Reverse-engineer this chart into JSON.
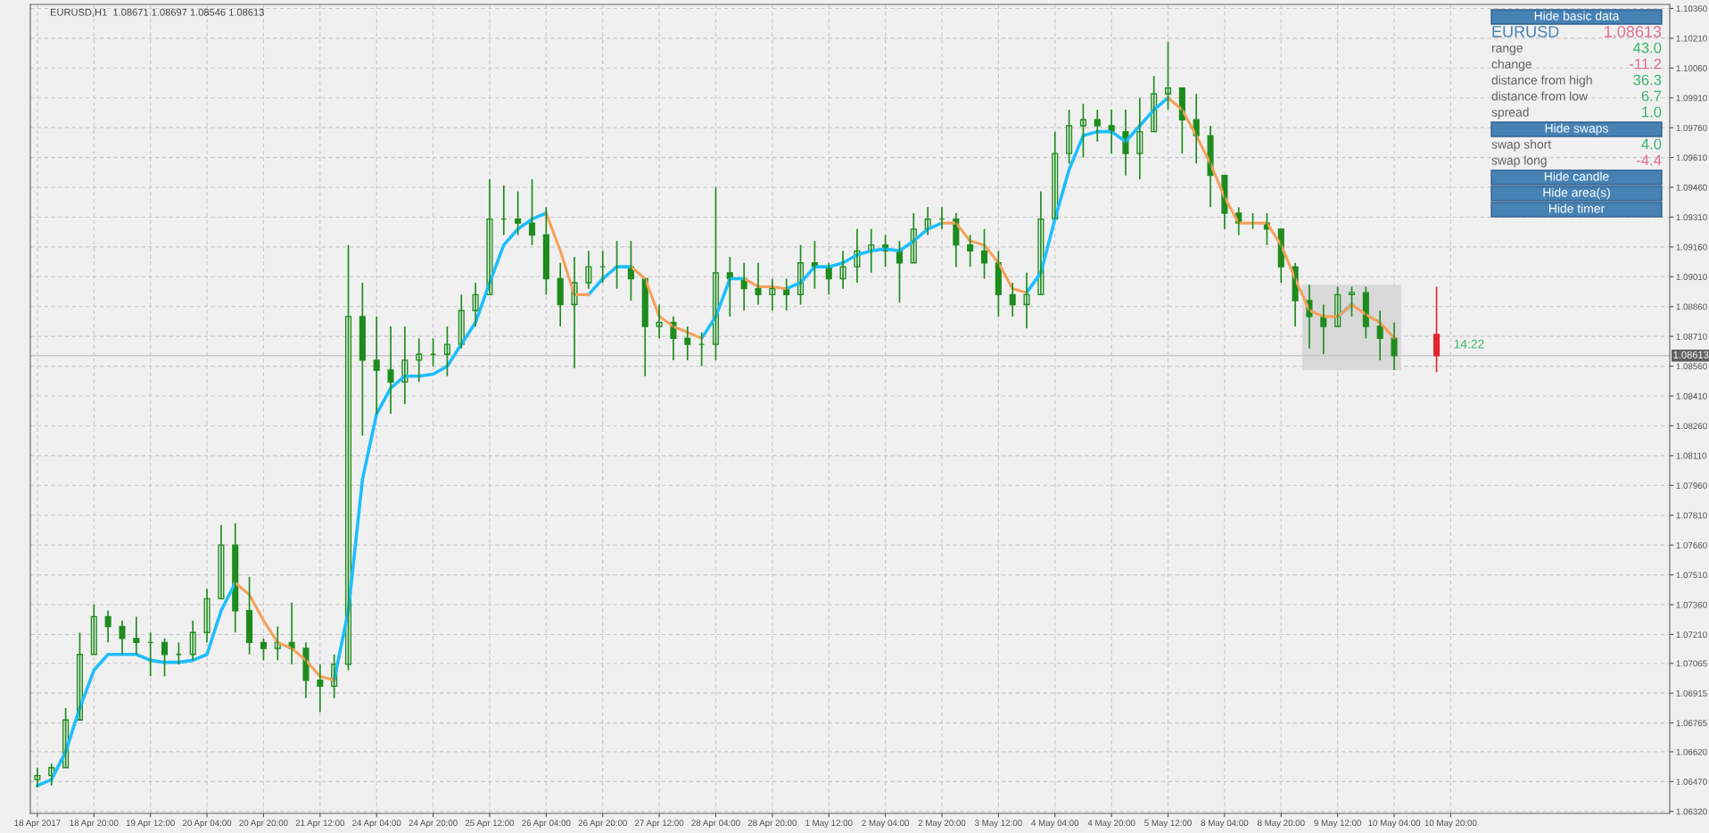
{
  "chart_data": {
    "type": "candlestick",
    "title": "EURUSD,H1  1.08671 1.08697 1.08546 1.08613",
    "categories": [
      "18 Apr 2017",
      null,
      null,
      null,
      "18 Apr 20:00",
      null,
      null,
      null,
      "19 Apr 12:00",
      null,
      null,
      null,
      "20 Apr 04:00",
      null,
      null,
      null,
      "20 Apr 20:00",
      null,
      null,
      null,
      "21 Apr 12:00",
      null,
      null,
      null,
      "24 Apr 04:00",
      null,
      null,
      null,
      "24 Apr 20:00",
      null,
      null,
      null,
      "25 Apr 12:00",
      null,
      null,
      null,
      "26 Apr 04:00",
      null,
      null,
      null,
      "26 Apr 20:00",
      null,
      null,
      null,
      "27 Apr 12:00",
      null,
      null,
      null,
      "28 Apr 04:00",
      null,
      null,
      null,
      "28 Apr 20:00",
      null,
      null,
      null,
      "1 May 12:00",
      null,
      null,
      null,
      "2 May 04:00",
      null,
      null,
      null,
      "2 May 20:00",
      null,
      null,
      null,
      "3 May 12:00",
      null,
      null,
      null,
      "4 May 04:00",
      null,
      null,
      null,
      "4 May 20:00",
      null,
      null,
      null,
      "5 May 12:00",
      null,
      null,
      null,
      "8 May 04:00",
      null,
      null,
      null,
      "8 May 20:00",
      null,
      null,
      null,
      "9 May 12:00",
      null,
      null,
      null,
      "10 May 04:00",
      null,
      null,
      null,
      "10 May 20:00",
      null,
      null,
      null,
      null,
      null,
      null,
      null,
      null,
      null,
      null,
      null,
      null,
      null,
      null,
      null
    ],
    "ylim": [
      1.0631,
      1.1038
    ],
    "yticks": [
      {
        "value": 1.0632,
        "label": "1.06320"
      },
      {
        "value": 1.0647,
        "label": "1.06470"
      },
      {
        "value": 1.0662,
        "label": "1.06620"
      },
      {
        "value": 1.06765,
        "label": "1.06765"
      },
      {
        "value": 1.06915,
        "label": "1.06915"
      },
      {
        "value": 1.07065,
        "label": "1.07065"
      },
      {
        "value": 1.0721,
        "label": "1.07210"
      },
      {
        "value": 1.0736,
        "label": "1.07360"
      },
      {
        "value": 1.0751,
        "label": "1.07510"
      },
      {
        "value": 1.0766,
        "label": "1.07660"
      },
      {
        "value": 1.0781,
        "label": "1.07810"
      },
      {
        "value": 1.0796,
        "label": "1.07960"
      },
      {
        "value": 1.0811,
        "label": "1.08110"
      },
      {
        "value": 1.0826,
        "label": "1.08260"
      },
      {
        "value": 1.0841,
        "label": "1.08410"
      },
      {
        "value": 1.0856,
        "label": "1.08560"
      },
      {
        "value": 1.0871,
        "label": "1.08710"
      },
      {
        "value": 1.0886,
        "label": "1.08860"
      },
      {
        "value": 1.0901,
        "label": "1.09010"
      },
      {
        "value": 1.0916,
        "label": "1.09160"
      },
      {
        "value": 1.0931,
        "label": "1.09310"
      },
      {
        "value": 1.0946,
        "label": "1.09460"
      },
      {
        "value": 1.0961,
        "label": "1.09610"
      },
      {
        "value": 1.0976,
        "label": "1.09760"
      },
      {
        "value": 1.0991,
        "label": "1.09910"
      },
      {
        "value": 1.1006,
        "label": "1.10060"
      },
      {
        "value": 1.1021,
        "label": "1.10210"
      },
      {
        "value": 1.1036,
        "label": "1.10360"
      }
    ],
    "grid": true,
    "series": [
      {
        "type": "candlestick",
        "color": "#1e8c1e",
        "ohlc": [
          [
            1.0648,
            1.0654,
            1.0644,
            1.065
          ],
          [
            1.065,
            1.0656,
            1.0645,
            1.0654
          ],
          [
            1.0654,
            1.0684,
            1.0654,
            1.0678
          ],
          [
            1.0678,
            1.0722,
            1.0678,
            1.0711
          ],
          [
            1.0711,
            1.0736,
            1.0711,
            1.073
          ],
          [
            1.073,
            1.0733,
            1.0717,
            1.0725
          ],
          [
            1.0725,
            1.0728,
            1.0711,
            1.0719
          ],
          [
            1.0719,
            1.073,
            1.0711,
            1.0717
          ],
          [
            1.0717,
            1.0722,
            1.07,
            1.0717
          ],
          [
            1.0717,
            1.0719,
            1.07,
            1.0711
          ],
          [
            1.0711,
            1.0717,
            1.0706,
            1.0711
          ],
          [
            1.0711,
            1.0728,
            1.0708,
            1.0722
          ],
          [
            1.0722,
            1.0744,
            1.0717,
            1.0739
          ],
          [
            1.0739,
            1.0776,
            1.0739,
            1.0766
          ],
          [
            1.0766,
            1.0777,
            1.0722,
            1.0733
          ],
          [
            1.0733,
            1.075,
            1.0711,
            1.0717
          ],
          [
            1.0717,
            1.0719,
            1.0708,
            1.0714
          ],
          [
            1.0714,
            1.0725,
            1.0708,
            1.0717
          ],
          [
            1.0717,
            1.0737,
            1.0706,
            1.0714
          ],
          [
            1.0714,
            1.0717,
            1.0689,
            1.0698
          ],
          [
            1.0698,
            1.0706,
            1.0682,
            1.0695
          ],
          [
            1.0695,
            1.0711,
            1.0689,
            1.0706
          ],
          [
            1.0706,
            1.0917,
            1.0703,
            1.0881
          ],
          [
            1.0881,
            1.0898,
            1.0821,
            1.0859
          ],
          [
            1.0859,
            1.0881,
            1.0832,
            1.0854
          ],
          [
            1.0854,
            1.0876,
            1.0832,
            1.0848
          ],
          [
            1.0848,
            1.0876,
            1.0837,
            1.0859
          ],
          [
            1.0859,
            1.087,
            1.0848,
            1.0862
          ],
          [
            1.0862,
            1.087,
            1.0856,
            1.0862
          ],
          [
            1.0862,
            1.0876,
            1.0851,
            1.0867
          ],
          [
            1.0867,
            1.0892,
            1.0865,
            1.0884
          ],
          [
            1.0884,
            1.0898,
            1.0876,
            1.0892
          ],
          [
            1.0892,
            1.095,
            1.0892,
            1.093
          ],
          [
            1.093,
            1.0947,
            1.0922,
            1.093
          ],
          [
            1.093,
            1.0944,
            1.0922,
            1.0928
          ],
          [
            1.0928,
            1.095,
            1.0917,
            1.0922
          ],
          [
            1.0922,
            1.0936,
            1.0892,
            1.09
          ],
          [
            1.09,
            1.0908,
            1.0876,
            1.0887
          ],
          [
            1.0887,
            1.0911,
            1.0855,
            1.0898
          ],
          [
            1.0898,
            1.0914,
            1.0895,
            1.0906
          ],
          [
            1.0906,
            1.0914,
            1.0898,
            1.0906
          ],
          [
            1.0906,
            1.0919,
            1.0895,
            1.0906
          ],
          [
            1.0906,
            1.0919,
            1.0889,
            1.09
          ],
          [
            1.09,
            1.09,
            1.0851,
            1.0876
          ],
          [
            1.0876,
            1.0887,
            1.087,
            1.0878
          ],
          [
            1.0878,
            1.0881,
            1.0859,
            1.087
          ],
          [
            1.087,
            1.0876,
            1.0859,
            1.0867
          ],
          [
            1.0867,
            1.0873,
            1.0856,
            1.0867
          ],
          [
            1.0867,
            1.0946,
            1.0859,
            1.0903
          ],
          [
            1.0903,
            1.0911,
            1.0881,
            1.09
          ],
          [
            1.09,
            1.0908,
            1.0884,
            1.0895
          ],
          [
            1.0895,
            1.0908,
            1.0887,
            1.0892
          ],
          [
            1.0892,
            1.09,
            1.0884,
            1.0895
          ],
          [
            1.0895,
            1.09,
            1.0884,
            1.0892
          ],
          [
            1.0892,
            1.0917,
            1.0887,
            1.0908
          ],
          [
            1.0908,
            1.0919,
            1.0895,
            1.0906
          ],
          [
            1.0906,
            1.0908,
            1.0892,
            1.09
          ],
          [
            1.09,
            1.0914,
            1.0895,
            1.0906
          ],
          [
            1.0906,
            1.0925,
            1.0898,
            1.0914
          ],
          [
            1.0914,
            1.0925,
            1.0903,
            1.0917
          ],
          [
            1.0917,
            1.0922,
            1.0906,
            1.0914
          ],
          [
            1.0914,
            1.0919,
            1.0888,
            1.0908
          ],
          [
            1.0908,
            1.0933,
            1.0908,
            1.0925
          ],
          [
            1.0925,
            1.0936,
            1.0922,
            1.093
          ],
          [
            1.093,
            1.0936,
            1.0925,
            1.093
          ],
          [
            1.093,
            1.0933,
            1.0906,
            1.0917
          ],
          [
            1.0917,
            1.0922,
            1.0906,
            1.0914
          ],
          [
            1.0914,
            1.0925,
            1.09,
            1.0908
          ],
          [
            1.0908,
            1.0914,
            1.0881,
            1.0892
          ],
          [
            1.0892,
            1.0898,
            1.0881,
            1.0887
          ],
          [
            1.0887,
            1.0903,
            1.0875,
            1.0892
          ],
          [
            1.0892,
            1.0944,
            1.0892,
            1.093
          ],
          [
            1.093,
            1.0974,
            1.093,
            1.0963
          ],
          [
            1.0963,
            1.0985,
            1.0958,
            1.0977
          ],
          [
            1.0977,
            1.0988,
            1.0961,
            1.098
          ],
          [
            1.098,
            1.0985,
            1.0969,
            1.0977
          ],
          [
            1.0977,
            1.0985,
            1.0963,
            1.0974
          ],
          [
            1.0974,
            1.0985,
            1.0952,
            1.0963
          ],
          [
            1.0963,
            1.0991,
            1.095,
            1.0974
          ],
          [
            1.0974,
            1.1002,
            1.0974,
            1.0993
          ],
          [
            1.0993,
            1.1019,
            1.0985,
            1.0996
          ],
          [
            1.0996,
            1.0996,
            1.0963,
            1.098
          ],
          [
            1.098,
            1.0993,
            1.0958,
            1.0972
          ],
          [
            1.0972,
            1.0977,
            1.0936,
            1.0952
          ],
          [
            1.0952,
            1.0952,
            1.0925,
            1.0933
          ],
          [
            1.0933,
            1.0936,
            1.0922,
            1.0928
          ],
          [
            1.0928,
            1.0933,
            1.0925,
            1.0928
          ],
          [
            1.0928,
            1.0933,
            1.0917,
            1.0925
          ],
          [
            1.0925,
            1.0925,
            1.0898,
            1.0906
          ],
          [
            1.0906,
            1.0908,
            1.0876,
            1.0889
          ],
          [
            1.0889,
            1.0897,
            1.0865,
            1.0881
          ],
          [
            1.0881,
            1.0887,
            1.0862,
            1.0876
          ],
          [
            1.0876,
            1.0896,
            1.0876,
            1.0892
          ],
          [
            1.0892,
            1.0896,
            1.0881,
            1.0893
          ],
          [
            1.0893,
            1.0896,
            1.087,
            1.0876
          ],
          [
            1.0876,
            1.0884,
            1.0859,
            1.087
          ],
          [
            1.087,
            1.0878,
            1.0854,
            1.08613
          ],
          null,
          null,
          null,
          null,
          null,
          null,
          null,
          null,
          null,
          null,
          null,
          null,
          null,
          null,
          null,
          null,
          null,
          null,
          null
        ]
      },
      {
        "type": "candlestick",
        "color": "#e3262e",
        "ohlc": [
          null,
          null,
          null,
          null,
          null,
          null,
          null,
          null,
          null,
          null,
          null,
          null,
          null,
          null,
          null,
          null,
          null,
          null,
          null,
          null,
          null,
          null,
          null,
          null,
          null,
          null,
          null,
          null,
          null,
          null,
          null,
          null,
          null,
          null,
          null,
          null,
          null,
          null,
          null,
          null,
          null,
          null,
          null,
          null,
          null,
          null,
          null,
          null,
          null,
          null,
          null,
          null,
          null,
          null,
          null,
          null,
          null,
          null,
          null,
          null,
          null,
          null,
          null,
          null,
          null,
          null,
          null,
          null,
          null,
          null,
          null,
          null,
          null,
          null,
          null,
          null,
          null,
          null,
          null,
          null,
          null,
          null,
          null,
          null,
          null,
          null,
          null,
          null,
          null,
          null,
          null,
          null,
          null,
          null,
          null,
          null,
          null,
          null,
          null,
          [
            1.0872,
            1.0896,
            1.0853,
            1.08613
          ],
          null,
          null,
          null,
          null,
          null,
          null,
          null,
          null,
          null,
          null,
          null,
          null,
          null,
          null,
          null,
          null
        ]
      },
      {
        "type": "line",
        "color": "#1ebeff",
        "values": [
          1.0645,
          1.0648,
          1.0662,
          1.0684,
          1.0703,
          1.0711,
          1.0711,
          1.0711,
          1.0708,
          1.0707,
          1.0707,
          1.0708,
          1.0711,
          1.0733,
          1.0747,
          null,
          null,
          null,
          null,
          null,
          null,
          1.0698,
          1.0733,
          1.0799,
          1.0832,
          1.0845,
          1.0851,
          1.0851,
          1.0852,
          1.0856,
          1.0867,
          1.0878,
          1.0898,
          1.0917,
          1.0925,
          1.093,
          1.0933,
          null,
          null,
          1.0892,
          1.09,
          1.0906,
          1.0906,
          null,
          null,
          null,
          null,
          1.087,
          1.0881,
          1.09,
          1.09,
          null,
          null,
          1.0895,
          1.0898,
          1.0906,
          1.0906,
          1.0908,
          1.0912,
          1.0914,
          1.0915,
          1.0914,
          1.0919,
          1.0925,
          1.0928,
          null,
          null,
          null,
          null,
          null,
          1.0893,
          1.0903,
          1.093,
          1.0955,
          1.0972,
          1.0974,
          1.0974,
          1.0969,
          1.0977,
          1.0985,
          1.0991,
          null,
          null,
          null,
          null,
          null,
          null,
          null,
          null,
          null,
          null,
          null,
          1.0881,
          1.0887,
          null,
          null,
          null,
          null,
          null,
          null,
          null,
          null,
          null,
          null,
          null,
          null,
          null,
          null,
          null,
          null,
          null,
          null,
          null,
          null,
          null,
          null
        ]
      },
      {
        "type": "line",
        "color": "#f5a05a",
        "values": [
          null,
          null,
          null,
          null,
          null,
          null,
          null,
          null,
          null,
          null,
          null,
          null,
          null,
          null,
          1.0747,
          1.0741,
          1.0728,
          1.0717,
          1.0714,
          1.0708,
          1.07,
          1.0698,
          null,
          null,
          null,
          null,
          null,
          null,
          null,
          null,
          null,
          null,
          null,
          null,
          null,
          null,
          1.0933,
          1.0914,
          1.0892,
          1.0892,
          null,
          null,
          1.0906,
          1.09,
          1.0881,
          1.0876,
          1.0873,
          1.087,
          null,
          null,
          1.09,
          1.0896,
          1.0896,
          1.0895,
          null,
          null,
          null,
          null,
          null,
          null,
          null,
          null,
          null,
          null,
          1.0928,
          1.0928,
          1.0919,
          1.0917,
          1.0908,
          1.0895,
          1.0893,
          null,
          null,
          null,
          null,
          null,
          null,
          null,
          null,
          null,
          1.0991,
          1.0985,
          1.0972,
          1.0958,
          1.0941,
          1.0928,
          1.0928,
          1.0928,
          1.0917,
          1.09,
          1.0884,
          1.0881,
          1.0881,
          1.0887,
          1.0882,
          1.0878,
          1.087,
          null,
          null,
          null,
          null,
          null,
          null,
          null,
          null,
          null,
          null,
          null,
          null,
          null,
          null,
          null,
          null,
          null,
          null,
          null
        ]
      }
    ],
    "ref_lines": [
      {
        "axis": "y",
        "value": 1.08613,
        "label": "1.08613",
        "color": "#c8c8c8"
      }
    ],
    "bands": [
      {
        "axis": "y",
        "from": 1.0854,
        "to": 1.0897,
        "color": "#d9d9d9"
      }
    ],
    "annotations": [
      "Hide basic data",
      "EURUSD",
      "1.08613",
      "range",
      "43.0",
      "change",
      "-11.2",
      "distance from high",
      "36.3",
      "distance from low",
      "6.7",
      "spread",
      "1.0",
      "Hide swaps",
      "swap short",
      "4.0",
      "swap long",
      "-4.4",
      "Hide candle",
      "Hide area(s)",
      "Hide timer",
      "14:22"
    ],
    "legend": false
  }
}
